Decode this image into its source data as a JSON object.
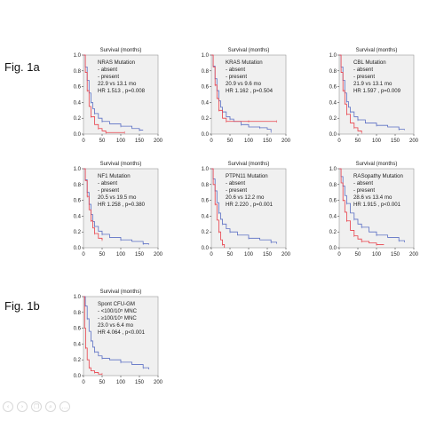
{
  "labels": {
    "fig1a": "Fig. 1a",
    "fig1b": "Fig. 1b"
  },
  "toolbar": [
    {
      "name": "back-icon",
      "glyph": "‹"
    },
    {
      "name": "forward-icon",
      "glyph": "›"
    },
    {
      "name": "copy-icon",
      "glyph": "❐"
    },
    {
      "name": "search-icon",
      "glyph": "⌕"
    },
    {
      "name": "more-icon",
      "glyph": "…"
    }
  ],
  "colors": {
    "absent": "#5b6fc4",
    "present": "#e8404a",
    "plot_bg": "#f0f0f0",
    "axis": "#222222"
  },
  "chart_data": [
    {
      "type": "line",
      "title": "Survival (months)",
      "legend": [
        "NRAS Mutation",
        "- absent",
        "- present",
        "22.9 vs 13.1 mo",
        "HR 1.513 , p=0.008"
      ],
      "xlim": [
        0,
        200
      ],
      "ylim": [
        0,
        1
      ],
      "xticks": [
        "0",
        "50",
        "100",
        "150",
        "200"
      ],
      "yticks": [
        "0.0",
        "0.2",
        "0.4",
        "0.6",
        "0.8",
        "1.0"
      ],
      "series": [
        {
          "x": [
            0,
            5,
            10,
            15,
            20,
            25,
            30,
            40,
            50,
            70,
            100,
            130,
            150,
            160
          ],
          "y": [
            1.0,
            0.85,
            0.68,
            0.52,
            0.4,
            0.32,
            0.26,
            0.2,
            0.16,
            0.13,
            0.1,
            0.07,
            0.05,
            0.05
          ]
        },
        {
          "x": [
            0,
            5,
            10,
            15,
            20,
            30,
            40,
            50,
            60,
            80,
            110
          ],
          "y": [
            1.0,
            0.78,
            0.55,
            0.35,
            0.22,
            0.12,
            0.07,
            0.04,
            0.02,
            0.02,
            0.02
          ]
        }
      ]
    },
    {
      "type": "line",
      "title": "Survival (months)",
      "legend": [
        "KRAS Mutation",
        "- absent",
        "- present",
        "20.9 vs 9.6 mo",
        "HR 1.162 , p=0.504"
      ],
      "xlim": [
        0,
        200
      ],
      "ylim": [
        0,
        1
      ],
      "xticks": [
        "0",
        "50",
        "100",
        "150",
        "200"
      ],
      "yticks": [
        "0.0",
        "0.2",
        "0.4",
        "0.6",
        "0.8",
        "1.0"
      ],
      "series": [
        {
          "x": [
            0,
            5,
            10,
            15,
            20,
            25,
            30,
            40,
            50,
            60,
            80,
            100,
            130,
            150,
            160
          ],
          "y": [
            1.0,
            0.86,
            0.7,
            0.55,
            0.42,
            0.34,
            0.28,
            0.22,
            0.19,
            0.16,
            0.12,
            0.09,
            0.08,
            0.06,
            0.03
          ]
        },
        {
          "x": [
            0,
            5,
            10,
            15,
            20,
            30,
            40,
            60,
            100,
            150,
            175
          ],
          "y": [
            1.0,
            0.85,
            0.62,
            0.45,
            0.3,
            0.2,
            0.16,
            0.16,
            0.16,
            0.16,
            0.16
          ]
        }
      ]
    },
    {
      "type": "line",
      "title": "Survival (months)",
      "legend": [
        "CBL Mutation",
        "- absent",
        "- present",
        "21.9 vs 13.1 mo",
        "HR 1.597 , p=0.009"
      ],
      "xlim": [
        0,
        200
      ],
      "ylim": [
        0,
        1
      ],
      "xticks": [
        "0",
        "50",
        "100",
        "150",
        "200"
      ],
      "yticks": [
        "0.0",
        "0.2",
        "0.4",
        "0.6",
        "0.8",
        "1.0"
      ],
      "series": [
        {
          "x": [
            0,
            5,
            10,
            15,
            20,
            25,
            30,
            40,
            50,
            70,
            100,
            130,
            160,
            175
          ],
          "y": [
            1.0,
            0.85,
            0.68,
            0.52,
            0.41,
            0.34,
            0.28,
            0.22,
            0.18,
            0.14,
            0.11,
            0.09,
            0.06,
            0.05
          ]
        },
        {
          "x": [
            0,
            5,
            10,
            15,
            20,
            30,
            40,
            50,
            60
          ],
          "y": [
            1.0,
            0.78,
            0.55,
            0.38,
            0.25,
            0.14,
            0.08,
            0.04,
            0.02
          ]
        }
      ]
    },
    {
      "type": "line",
      "title": "Survival (months)",
      "legend": [
        "NF1 Mutation",
        "- absent",
        "- present",
        "20.5 vs 19.5 mo",
        "HR 1.258 , p=0.380"
      ],
      "xlim": [
        0,
        200
      ],
      "ylim": [
        0,
        1
      ],
      "xticks": [
        "0",
        "50",
        "100",
        "150",
        "200"
      ],
      "yticks": [
        "0.0",
        "0.2",
        "0.4",
        "0.6",
        "0.8",
        "1.0"
      ],
      "series": [
        {
          "x": [
            0,
            5,
            10,
            15,
            20,
            25,
            30,
            40,
            50,
            70,
            100,
            130,
            160,
            175
          ],
          "y": [
            1.0,
            0.86,
            0.7,
            0.55,
            0.42,
            0.33,
            0.27,
            0.21,
            0.17,
            0.13,
            0.1,
            0.08,
            0.05,
            0.04
          ]
        },
        {
          "x": [
            0,
            5,
            10,
            15,
            20,
            25,
            30,
            40,
            50
          ],
          "y": [
            1.0,
            0.85,
            0.65,
            0.48,
            0.34,
            0.25,
            0.18,
            0.12,
            0.1
          ]
        }
      ]
    },
    {
      "type": "line",
      "title": "Survival (months)",
      "legend": [
        "PTPN11 Mutation",
        "- absent",
        "- present",
        "20.6 vs 12.2 mo",
        "HR 2.220 , p=0.001"
      ],
      "xlim": [
        0,
        200
      ],
      "ylim": [
        0,
        1
      ],
      "xticks": [
        "0",
        "50",
        "100",
        "150",
        "200"
      ],
      "yticks": [
        "0.0",
        "0.2",
        "0.4",
        "0.6",
        "0.8",
        "1.0"
      ],
      "series": [
        {
          "x": [
            0,
            5,
            10,
            15,
            20,
            25,
            30,
            40,
            50,
            70,
            100,
            130,
            160,
            175
          ],
          "y": [
            1.0,
            0.87,
            0.72,
            0.57,
            0.44,
            0.36,
            0.3,
            0.24,
            0.2,
            0.16,
            0.12,
            0.1,
            0.07,
            0.05
          ]
        },
        {
          "x": [
            0,
            5,
            10,
            15,
            20,
            25,
            30,
            35
          ],
          "y": [
            1.0,
            0.8,
            0.55,
            0.35,
            0.2,
            0.1,
            0.04,
            0.0
          ]
        }
      ]
    },
    {
      "type": "line",
      "title": "Survival (months)",
      "legend": [
        "RASopathy Mutation",
        "- absent",
        "- present",
        "28.6 vs 13.4 mo",
        "HR 1.915 , p<0.001"
      ],
      "xlim": [
        0,
        200
      ],
      "ylim": [
        0,
        1
      ],
      "xticks": [
        "0",
        "50",
        "100",
        "150",
        "200"
      ],
      "yticks": [
        "0.0",
        "0.2",
        "0.4",
        "0.6",
        "0.8",
        "1.0"
      ],
      "series": [
        {
          "x": [
            0,
            5,
            10,
            15,
            20,
            30,
            40,
            50,
            60,
            80,
            100,
            130,
            160,
            175
          ],
          "y": [
            1.0,
            0.9,
            0.78,
            0.66,
            0.56,
            0.44,
            0.36,
            0.3,
            0.26,
            0.2,
            0.16,
            0.13,
            0.09,
            0.07
          ]
        },
        {
          "x": [
            0,
            5,
            10,
            15,
            20,
            30,
            40,
            50,
            60,
            80,
            100,
            120
          ],
          "y": [
            1.0,
            0.82,
            0.6,
            0.45,
            0.34,
            0.22,
            0.15,
            0.11,
            0.08,
            0.06,
            0.04,
            0.04
          ]
        }
      ]
    },
    {
      "type": "line",
      "title": "Survival (months)",
      "legend": [
        "Spont CFU-GM",
        "- <100/10⁵ MNC",
        "- ≥100/10⁵ MNC",
        "23.0 vs 6.4 mo",
        "HR 4.064 , p<0.001"
      ],
      "xlim": [
        0,
        200
      ],
      "ylim": [
        0,
        1
      ],
      "xticks": [
        "0",
        "50",
        "100",
        "150",
        "200"
      ],
      "yticks": [
        "0.0",
        "0.2",
        "0.4",
        "0.6",
        "0.8",
        "1.0"
      ],
      "series": [
        {
          "x": [
            0,
            5,
            10,
            15,
            20,
            25,
            30,
            40,
            50,
            70,
            100,
            130,
            160,
            175
          ],
          "y": [
            1.0,
            0.88,
            0.72,
            0.56,
            0.44,
            0.36,
            0.3,
            0.25,
            0.22,
            0.2,
            0.17,
            0.14,
            0.1,
            0.08
          ]
        },
        {
          "x": [
            0,
            3,
            6,
            10,
            15,
            20,
            30,
            40,
            50
          ],
          "y": [
            1.0,
            0.6,
            0.35,
            0.2,
            0.1,
            0.06,
            0.04,
            0.02,
            0.02
          ]
        }
      ]
    }
  ]
}
